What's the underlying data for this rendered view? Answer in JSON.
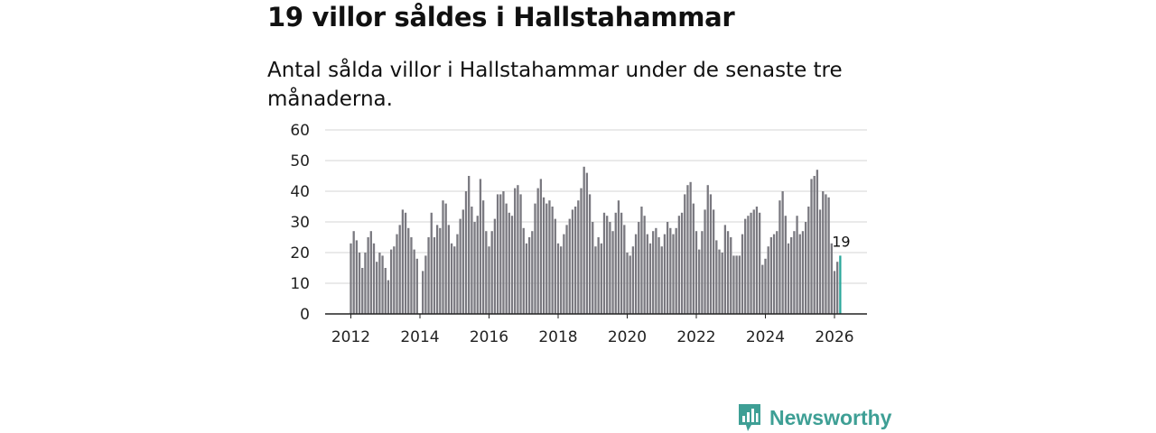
{
  "title": "19 villor såldes i Hallstahammar",
  "subtitle": "Antal sålda villor i Hallstahammar under de senaste tre månaderna.",
  "brand": {
    "name": "Newsworthy",
    "icon": "newsworthy-logo-icon",
    "color": "#3e9f95"
  },
  "chart_data": {
    "type": "bar",
    "title": "",
    "xlabel": "",
    "ylabel": "",
    "ylim": [
      0,
      60
    ],
    "yticks": [
      "0",
      "10",
      "20",
      "30",
      "40",
      "50",
      "60"
    ],
    "xticks": [
      "2012",
      "2014",
      "2016",
      "2018",
      "2020",
      "2022",
      "2024",
      "2026"
    ],
    "x_start": "2012-01",
    "bar_color": "#7a7980",
    "highlight_color": "#2aa79b",
    "highlight_label": "19",
    "values": [
      23,
      27,
      24,
      20,
      15,
      20,
      25,
      27,
      23,
      17,
      20,
      19,
      15,
      11,
      21,
      22,
      26,
      29,
      34,
      33,
      28,
      25,
      21,
      18,
      0,
      14,
      19,
      25,
      33,
      25,
      29,
      28,
      37,
      36,
      29,
      23,
      22,
      26,
      31,
      34,
      40,
      45,
      35,
      30,
      32,
      44,
      37,
      27,
      22,
      27,
      31,
      39,
      39,
      40,
      36,
      33,
      32,
      41,
      42,
      39,
      28,
      23,
      25,
      27,
      36,
      41,
      44,
      38,
      36,
      37,
      35,
      31,
      23,
      22,
      26,
      29,
      31,
      34,
      35,
      37,
      41,
      48,
      46,
      39,
      30,
      22,
      25,
      23,
      33,
      32,
      30,
      27,
      33,
      37,
      33,
      29,
      20,
      19,
      22,
      26,
      30,
      35,
      32,
      26,
      23,
      27,
      28,
      25,
      22,
      26,
      30,
      28,
      26,
      28,
      32,
      33,
      39,
      42,
      43,
      36,
      27,
      21,
      27,
      34,
      42,
      39,
      34,
      24,
      21,
      20,
      29,
      27,
      25,
      19,
      19,
      19,
      26,
      31,
      32,
      33,
      34,
      35,
      33,
      16,
      18,
      22,
      25,
      26,
      27,
      37,
      40,
      32,
      23,
      25,
      27,
      32,
      26,
      27,
      30,
      35,
      44,
      45,
      47,
      34,
      40,
      39,
      38,
      23,
      14,
      17,
      19
    ]
  }
}
